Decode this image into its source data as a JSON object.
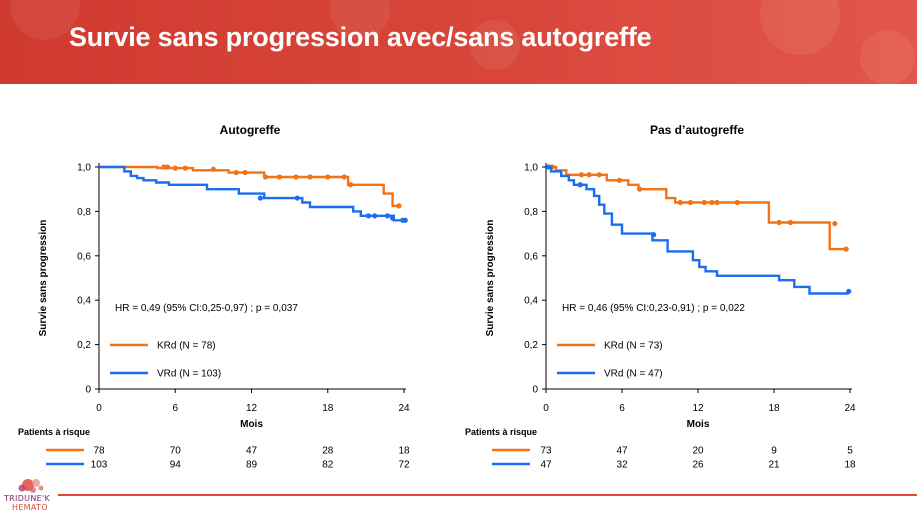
{
  "slide": {
    "title": "Survie sans progression avec/sans autogreffe",
    "logo_name": "TRIDUNE'K",
    "logo_sub": "HEMATO",
    "colors": {
      "banner": "#d8463a",
      "orange": "#f47216",
      "blue": "#1a6ef0",
      "bottom_rule": "#e04a3e"
    }
  },
  "chart_data": [
    {
      "type": "line",
      "title": "Autogreffe",
      "xlabel": "Mois",
      "ylabel": "Survie sans progression",
      "xlim": [
        0,
        24
      ],
      "ylim": [
        0,
        1.0
      ],
      "xticks": [
        "0",
        "6",
        "12",
        "18",
        "24"
      ],
      "yticks": [
        "0",
        "0,2",
        "0,4",
        "0,6",
        "0,8",
        "1,0"
      ],
      "annotation": "HR = 0,49 (95% CI:0,25-0,97) ; p = 0,037",
      "series": [
        {
          "name": "KRd (N = 78)",
          "color": "#f47216",
          "x": [
            0,
            4.6,
            4.6,
            7.4,
            7.4,
            10.2,
            10.2,
            13,
            13,
            19.6,
            19.6,
            22.4,
            22.4,
            23.1,
            23.1,
            23.8
          ],
          "y": [
            1.0,
            1.0,
            0.995,
            0.995,
            0.985,
            0.985,
            0.975,
            0.975,
            0.955,
            0.955,
            0.92,
            0.92,
            0.88,
            0.88,
            0.825,
            0.825
          ],
          "censor_x": [
            5.1,
            5.4,
            6,
            6.8,
            9,
            10.8,
            11.5,
            13.1,
            14.2,
            15.5,
            16.6,
            18,
            19.3,
            19.8,
            23.6
          ],
          "censor_y": [
            1.0,
            1.0,
            0.995,
            0.995,
            0.99,
            0.975,
            0.975,
            0.955,
            0.955,
            0.955,
            0.955,
            0.955,
            0.955,
            0.92,
            0.825
          ]
        },
        {
          "name": "VRd (N = 103)",
          "color": "#1a6ef0",
          "x": [
            0,
            2,
            2,
            2.5,
            2.5,
            3,
            3,
            3.5,
            3.5,
            4.5,
            4.5,
            5.5,
            5.5,
            8.5,
            8.5,
            11,
            11,
            13,
            13,
            16,
            16,
            16.6,
            16.6,
            20,
            20,
            20.6,
            20.6,
            21.4,
            21.4,
            23.2,
            23.2,
            24
          ],
          "y": [
            1.0,
            1.0,
            0.98,
            0.98,
            0.96,
            0.96,
            0.95,
            0.95,
            0.94,
            0.94,
            0.93,
            0.93,
            0.92,
            0.92,
            0.9,
            0.9,
            0.88,
            0.88,
            0.86,
            0.86,
            0.84,
            0.84,
            0.82,
            0.82,
            0.8,
            0.8,
            0.78,
            0.78,
            0.78,
            0.78,
            0.76,
            0.76
          ],
          "censor_x": [
            12.7,
            15.6,
            21.2,
            21.7,
            22.7,
            23.1,
            23.9,
            24.1
          ],
          "censor_y": [
            0.86,
            0.86,
            0.78,
            0.78,
            0.78,
            0.77,
            0.76,
            0.76
          ]
        }
      ],
      "risk_table": {
        "label": "Patients à risque",
        "x": [
          0,
          6,
          12,
          18,
          24
        ],
        "rows": [
          {
            "series": "KRd",
            "color": "#f47216",
            "values": [
              "78",
              "70",
              "47",
              "28",
              "18"
            ]
          },
          {
            "series": "VRd",
            "color": "#1a6ef0",
            "values": [
              "103",
              "94",
              "89",
              "82",
              "72"
            ]
          }
        ]
      }
    },
    {
      "type": "line",
      "title": "Pas d’autogreffe",
      "xlabel": "Mois",
      "ylabel": "Survie sans progression",
      "xlim": [
        0,
        24
      ],
      "ylim": [
        0,
        1.0
      ],
      "xticks": [
        "0",
        "6",
        "12",
        "18",
        "24"
      ],
      "yticks": [
        "0",
        "0,2",
        "0,4",
        "0,6",
        "0,8",
        "1,0"
      ],
      "annotation": "HR = 0,46 (95% CI:0,23-0,91) ; p = 0,022",
      "series": [
        {
          "name": "KRd (N = 73)",
          "color": "#f47216",
          "x": [
            0,
            0.8,
            0.8,
            1.6,
            1.6,
            4.8,
            4.8,
            6.5,
            6.5,
            7.3,
            7.3,
            9.5,
            9.5,
            10.2,
            10.2,
            17.6,
            17.6,
            22.4,
            22.4,
            23.7
          ],
          "y": [
            1.0,
            1.0,
            0.985,
            0.985,
            0.965,
            0.965,
            0.94,
            0.94,
            0.92,
            0.92,
            0.9,
            0.9,
            0.86,
            0.86,
            0.84,
            0.84,
            0.75,
            0.75,
            0.63,
            0.63
          ],
          "censor_x": [
            0.5,
            2.8,
            3.4,
            4.2,
            5.8,
            7.4,
            10.6,
            11.4,
            12.5,
            13.1,
            13.5,
            15.1,
            18.4,
            19.3,
            22.8,
            23.7
          ],
          "censor_y": [
            1.0,
            0.965,
            0.965,
            0.965,
            0.94,
            0.9,
            0.84,
            0.84,
            0.84,
            0.84,
            0.84,
            0.84,
            0.75,
            0.75,
            0.745,
            0.63
          ]
        },
        {
          "name": "VRd (N = 47)",
          "color": "#1a6ef0",
          "x": [
            0,
            0.4,
            0.4,
            1.2,
            1.2,
            1.8,
            1.8,
            2.2,
            2.2,
            3.2,
            3.2,
            3.8,
            3.8,
            4.2,
            4.2,
            4.6,
            4.6,
            5.2,
            5.2,
            6,
            6,
            8.4,
            8.4,
            9.6,
            9.6,
            11.6,
            11.6,
            12.1,
            12.1,
            12.6,
            12.6,
            13.5,
            13.5,
            18.4,
            18.4,
            19.6,
            19.6,
            20.8,
            20.8,
            23.9
          ],
          "y": [
            1.0,
            1.0,
            0.98,
            0.98,
            0.96,
            0.96,
            0.94,
            0.94,
            0.92,
            0.92,
            0.9,
            0.9,
            0.87,
            0.87,
            0.83,
            0.83,
            0.79,
            0.79,
            0.74,
            0.74,
            0.7,
            0.7,
            0.67,
            0.67,
            0.62,
            0.62,
            0.58,
            0.58,
            0.55,
            0.55,
            0.53,
            0.53,
            0.51,
            0.51,
            0.49,
            0.49,
            0.46,
            0.46,
            0.43,
            0.43
          ],
          "censor_x": [
            0.2,
            2.7,
            8.5,
            23.9
          ],
          "censor_y": [
            1.0,
            0.92,
            0.695,
            0.44
          ]
        }
      ],
      "risk_table": {
        "label": "Patients à risque",
        "x": [
          0,
          6,
          12,
          18,
          24
        ],
        "rows": [
          {
            "series": "KRd",
            "color": "#f47216",
            "values": [
              "73",
              "47",
              "20",
              "9",
              "5"
            ]
          },
          {
            "series": "VRd",
            "color": "#1a6ef0",
            "values": [
              "47",
              "32",
              "26",
              "21",
              "18"
            ]
          }
        ]
      }
    }
  ]
}
